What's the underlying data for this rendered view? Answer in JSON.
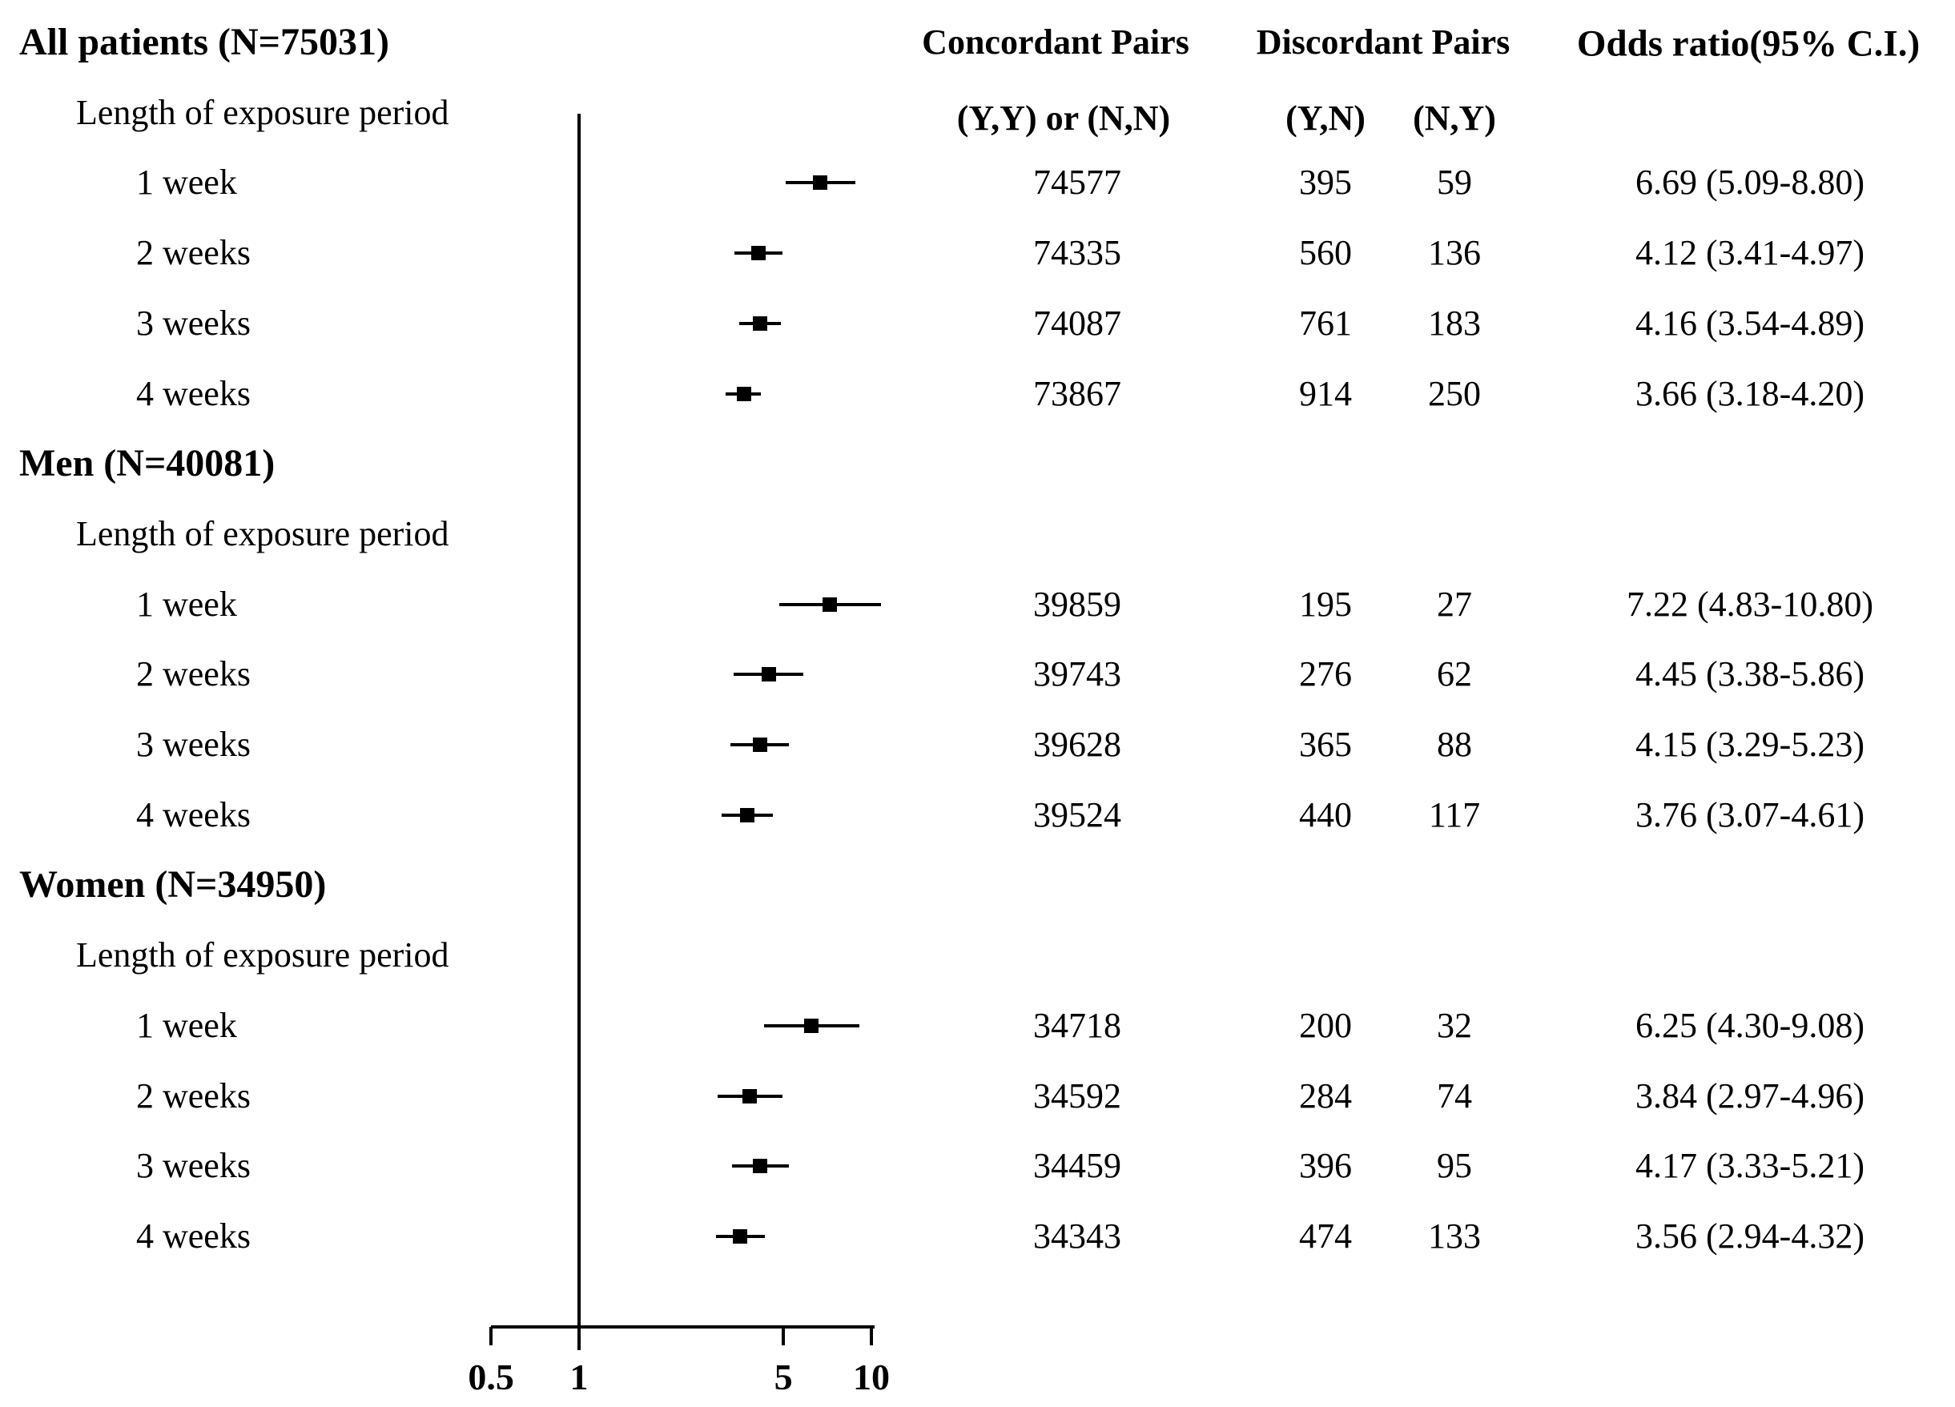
{
  "figure": {
    "columns": {
      "concordant_header": "Concordant Pairs",
      "concordant_subheader": "(Y,Y) or (N,N)",
      "discordant_header": "Discordant Pairs",
      "discordant_sub_yn": "(Y,N)",
      "discordant_sub_ny": "(N,Y)",
      "odds_ratio_header": "Odds ratio(95% C.I.)"
    }
  },
  "chart_data": {
    "type": "scatter",
    "subtype": "forest-plot",
    "xscale": "log",
    "xlim": [
      0.5,
      10
    ],
    "xticks": [
      0.5,
      1,
      5,
      10
    ],
    "xtick_labels": [
      "0.5",
      "1",
      "5",
      "10"
    ],
    "reference_line_x": 1,
    "marker_color": "#000000",
    "background": "#ffffff",
    "groups": [
      {
        "title": "All patients (N=75031)",
        "subheader": "Length of exposure period",
        "rows": [
          {
            "label": "1 week",
            "concordant": "74577",
            "discordant_yn": "395",
            "discordant_ny": "59",
            "or": 6.69,
            "ci_low": 5.09,
            "ci_high": 8.8,
            "or_text": "6.69 (5.09-8.80)"
          },
          {
            "label": "2 weeks",
            "concordant": "74335",
            "discordant_yn": "560",
            "discordant_ny": "136",
            "or": 4.12,
            "ci_low": 3.41,
            "ci_high": 4.97,
            "or_text": "4.12 (3.41-4.97)"
          },
          {
            "label": "3 weeks",
            "concordant": "74087",
            "discordant_yn": "761",
            "discordant_ny": "183",
            "or": 4.16,
            "ci_low": 3.54,
            "ci_high": 4.89,
            "or_text": "4.16 (3.54-4.89)"
          },
          {
            "label": "4 weeks",
            "concordant": "73867",
            "discordant_yn": "914",
            "discordant_ny": "250",
            "or": 3.66,
            "ci_low": 3.18,
            "ci_high": 4.2,
            "or_text": "3.66 (3.18-4.20)"
          }
        ]
      },
      {
        "title": "Men (N=40081)",
        "subheader": "Length of exposure period",
        "rows": [
          {
            "label": "1 week",
            "concordant": "39859",
            "discordant_yn": "195",
            "discordant_ny": "27",
            "or": 7.22,
            "ci_low": 4.83,
            "ci_high": 10.8,
            "or_text": "7.22 (4.83-10.80)"
          },
          {
            "label": "2 weeks",
            "concordant": "39743",
            "discordant_yn": "276",
            "discordant_ny": "62",
            "or": 4.45,
            "ci_low": 3.38,
            "ci_high": 5.86,
            "or_text": "4.45 (3.38-5.86)"
          },
          {
            "label": "3 weeks",
            "concordant": "39628",
            "discordant_yn": "365",
            "discordant_ny": "88",
            "or": 4.15,
            "ci_low": 3.29,
            "ci_high": 5.23,
            "or_text": "4.15 (3.29-5.23)"
          },
          {
            "label": "4 weeks",
            "concordant": "39524",
            "discordant_yn": "440",
            "discordant_ny": "117",
            "or": 3.76,
            "ci_low": 3.07,
            "ci_high": 4.61,
            "or_text": "3.76 (3.07-4.61)"
          }
        ]
      },
      {
        "title": "Women (N=34950)",
        "subheader": "Length of exposure period",
        "rows": [
          {
            "label": "1 week",
            "concordant": "34718",
            "discordant_yn": "200",
            "discordant_ny": "32",
            "or": 6.25,
            "ci_low": 4.3,
            "ci_high": 9.08,
            "or_text": "6.25 (4.30-9.08)"
          },
          {
            "label": "2 weeks",
            "concordant": "34592",
            "discordant_yn": "284",
            "discordant_ny": "74",
            "or": 3.84,
            "ci_low": 2.97,
            "ci_high": 4.96,
            "or_text": "3.84 (2.97-4.96)"
          },
          {
            "label": "3 weeks",
            "concordant": "34459",
            "discordant_yn": "396",
            "discordant_ny": "95",
            "or": 4.17,
            "ci_low": 3.33,
            "ci_high": 5.21,
            "or_text": "4.17 (3.33-5.21)"
          },
          {
            "label": "4 weeks",
            "concordant": "34343",
            "discordant_yn": "474",
            "discordant_ny": "133",
            "or": 3.56,
            "ci_low": 2.94,
            "ci_high": 4.32,
            "or_text": "3.56 (2.94-4.32)"
          }
        ]
      }
    ]
  }
}
